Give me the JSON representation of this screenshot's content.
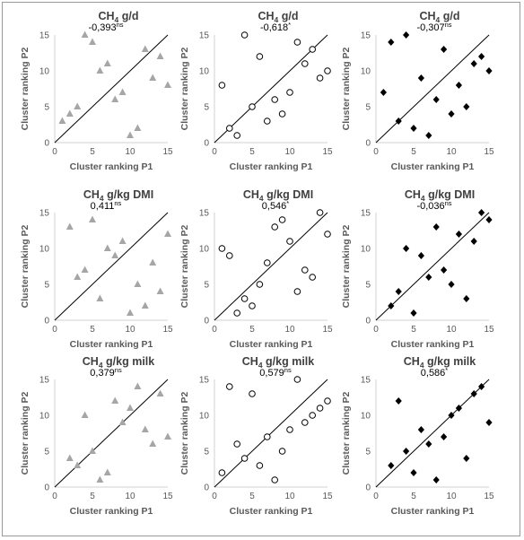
{
  "chart_data": [
    {
      "type": "scatter",
      "title": "CH4 g/d",
      "correlation": "-0,393",
      "significance": "ns",
      "xlabel": "Cluster ranking P1",
      "ylabel": "Cluster ranking P2",
      "xlim": [
        0,
        15
      ],
      "ylim": [
        0,
        15
      ],
      "xticks": [
        0,
        5,
        10,
        15
      ],
      "yticks": [
        0,
        5,
        10,
        15
      ],
      "marker": "triangle",
      "marker_color": "#a6a6a6",
      "points": [
        [
          1,
          3
        ],
        [
          2,
          4
        ],
        [
          3,
          5
        ],
        [
          4,
          15
        ],
        [
          5,
          14
        ],
        [
          6,
          10
        ],
        [
          7,
          11
        ],
        [
          8,
          6
        ],
        [
          9,
          7
        ],
        [
          10,
          1
        ],
        [
          11,
          2
        ],
        [
          12,
          13
        ],
        [
          13,
          9
        ],
        [
          14,
          12
        ],
        [
          15,
          8
        ]
      ]
    },
    {
      "type": "scatter",
      "title": "CH4 g/d",
      "correlation": "-0,618",
      "significance": "*",
      "xlabel": "Cluster ranking P1",
      "ylabel": "Cluster ranking P2",
      "xlim": [
        0,
        15
      ],
      "ylim": [
        0,
        15
      ],
      "xticks": [
        0,
        5,
        10,
        15
      ],
      "yticks": [
        0,
        5,
        10,
        15
      ],
      "marker": "circle",
      "marker_color": "#000000",
      "points": [
        [
          1,
          8
        ],
        [
          2,
          2
        ],
        [
          3,
          1
        ],
        [
          4,
          15
        ],
        [
          5,
          5
        ],
        [
          6,
          12
        ],
        [
          7,
          3
        ],
        [
          8,
          6
        ],
        [
          9,
          4
        ],
        [
          10,
          7
        ],
        [
          11,
          14
        ],
        [
          12,
          11
        ],
        [
          13,
          13
        ],
        [
          14,
          9
        ],
        [
          15,
          10
        ]
      ]
    },
    {
      "type": "scatter",
      "title": "CH4 g/d",
      "correlation": "-0,307",
      "significance": "ns",
      "xlabel": "Cluster ranking P1",
      "ylabel": "Cluster ranking P2",
      "xlim": [
        0,
        15
      ],
      "ylim": [
        0,
        15
      ],
      "xticks": [
        0,
        5,
        10,
        15
      ],
      "yticks": [
        0,
        5,
        10,
        15
      ],
      "marker": "diamond",
      "marker_color": "#000000",
      "points": [
        [
          1,
          7
        ],
        [
          2,
          14
        ],
        [
          3,
          3
        ],
        [
          4,
          15
        ],
        [
          5,
          2
        ],
        [
          6,
          9
        ],
        [
          7,
          1
        ],
        [
          8,
          6
        ],
        [
          9,
          13
        ],
        [
          10,
          4
        ],
        [
          11,
          8
        ],
        [
          12,
          5
        ],
        [
          13,
          11
        ],
        [
          14,
          12
        ],
        [
          15,
          10
        ]
      ]
    },
    {
      "type": "scatter",
      "title": "CH4 g/kg DMI",
      "correlation": "0,411",
      "significance": "ns",
      "xlabel": "Cluster ranking P1",
      "ylabel": "Cluster ranking P2",
      "xlim": [
        0,
        15
      ],
      "ylim": [
        0,
        15
      ],
      "xticks": [
        0,
        5,
        10,
        15
      ],
      "yticks": [
        0,
        5,
        10,
        15
      ],
      "marker": "triangle",
      "marker_color": "#a6a6a6",
      "points": [
        [
          2,
          13
        ],
        [
          3,
          6
        ],
        [
          4,
          7
        ],
        [
          5,
          14
        ],
        [
          6,
          3
        ],
        [
          7,
          10
        ],
        [
          8,
          9
        ],
        [
          9,
          11
        ],
        [
          10,
          1
        ],
        [
          11,
          5
        ],
        [
          12,
          2
        ],
        [
          13,
          8
        ],
        [
          14,
          4
        ],
        [
          15,
          12
        ]
      ]
    },
    {
      "type": "scatter",
      "title": "CH4 g/kg DMI",
      "correlation": "0,546",
      "significance": "*",
      "xlabel": "Cluster ranking P1",
      "ylabel": "Cluster ranking P2",
      "xlim": [
        0,
        15
      ],
      "ylim": [
        0,
        15
      ],
      "xticks": [
        0,
        5,
        10,
        15
      ],
      "yticks": [
        0,
        5,
        10,
        15
      ],
      "marker": "circle",
      "marker_color": "#000000",
      "points": [
        [
          1,
          10
        ],
        [
          2,
          9
        ],
        [
          3,
          1
        ],
        [
          4,
          3
        ],
        [
          5,
          2
        ],
        [
          6,
          5
        ],
        [
          7,
          8
        ],
        [
          8,
          13
        ],
        [
          9,
          14
        ],
        [
          10,
          11
        ],
        [
          11,
          4
        ],
        [
          12,
          7
        ],
        [
          13,
          6
        ],
        [
          14,
          15
        ],
        [
          15,
          12
        ]
      ]
    },
    {
      "type": "scatter",
      "title": "CH4 g/kg DMI",
      "correlation": "-0,036",
      "significance": "ns",
      "xlabel": "Cluster ranking P1",
      "ylabel": "Cluster ranking P2",
      "xlim": [
        0,
        15
      ],
      "ylim": [
        0,
        15
      ],
      "xticks": [
        0,
        5,
        10,
        15
      ],
      "yticks": [
        0,
        5,
        10,
        15
      ],
      "marker": "diamond",
      "marker_color": "#000000",
      "points": [
        [
          2,
          2
        ],
        [
          3,
          4
        ],
        [
          4,
          10
        ],
        [
          5,
          1
        ],
        [
          6,
          9
        ],
        [
          7,
          6
        ],
        [
          8,
          13
        ],
        [
          9,
          7
        ],
        [
          10,
          5
        ],
        [
          11,
          12
        ],
        [
          12,
          3
        ],
        [
          13,
          11
        ],
        [
          14,
          15
        ],
        [
          15,
          14
        ]
      ]
    },
    {
      "type": "scatter",
      "title": "CH4 g/kg milk",
      "correlation": "0,379",
      "significance": "ns",
      "xlabel": "Cluster ranking P1",
      "ylabel": "Cluster ranking P2",
      "xlim": [
        0,
        15
      ],
      "ylim": [
        0,
        15
      ],
      "xticks": [
        0,
        5,
        10,
        15
      ],
      "yticks": [
        0,
        5,
        10,
        15
      ],
      "marker": "triangle",
      "marker_color": "#a6a6a6",
      "points": [
        [
          2,
          4
        ],
        [
          3,
          3
        ],
        [
          4,
          10
        ],
        [
          5,
          5
        ],
        [
          6,
          1
        ],
        [
          7,
          2
        ],
        [
          8,
          12
        ],
        [
          9,
          9
        ],
        [
          10,
          11
        ],
        [
          11,
          14
        ],
        [
          12,
          8
        ],
        [
          13,
          6
        ],
        [
          14,
          13
        ],
        [
          15,
          7
        ]
      ]
    },
    {
      "type": "scatter",
      "title": "CH4 g/kg milk",
      "correlation": "0,579",
      "significance": "ns",
      "xlabel": "Cluster ranking P1",
      "ylabel": "Cluster ranking P2",
      "xlim": [
        0,
        15
      ],
      "ylim": [
        0,
        15
      ],
      "xticks": [
        0,
        5,
        10,
        15
      ],
      "yticks": [
        0,
        5,
        10,
        15
      ],
      "marker": "circle",
      "marker_color": "#000000",
      "points": [
        [
          1,
          2
        ],
        [
          2,
          14
        ],
        [
          3,
          6
        ],
        [
          4,
          4
        ],
        [
          5,
          13
        ],
        [
          6,
          3
        ],
        [
          7,
          7
        ],
        [
          8,
          1
        ],
        [
          9,
          5
        ],
        [
          10,
          8
        ],
        [
          11,
          15
        ],
        [
          12,
          9
        ],
        [
          13,
          10
        ],
        [
          14,
          11
        ],
        [
          15,
          12
        ]
      ]
    },
    {
      "type": "scatter",
      "title": "CH4 g/kg milk",
      "correlation": "0,586",
      "significance": "*",
      "xlabel": "Cluster ranking P1",
      "ylabel": "Cluster ranking P2",
      "xlim": [
        0,
        15
      ],
      "ylim": [
        0,
        15
      ],
      "xticks": [
        0,
        5,
        10,
        15
      ],
      "yticks": [
        0,
        5,
        10,
        15
      ],
      "marker": "diamond",
      "marker_color": "#000000",
      "points": [
        [
          2,
          3
        ],
        [
          3,
          12
        ],
        [
          4,
          5
        ],
        [
          5,
          2
        ],
        [
          6,
          8
        ],
        [
          7,
          6
        ],
        [
          8,
          1
        ],
        [
          9,
          7
        ],
        [
          10,
          10
        ],
        [
          11,
          11
        ],
        [
          12,
          4
        ],
        [
          13,
          13
        ],
        [
          14,
          14
        ],
        [
          15,
          9
        ]
      ]
    }
  ]
}
